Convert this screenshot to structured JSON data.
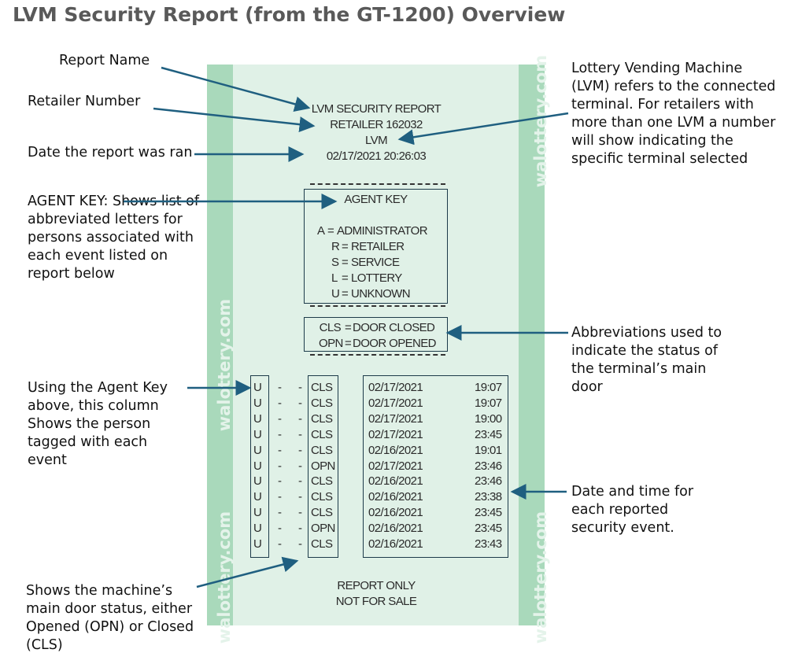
{
  "title": "LVM Security Report (from the GT-1200) Overview",
  "annotations": {
    "report_name": "Report Name",
    "retailer_number": "Retailer Number",
    "date_ran": "Date the report was ran",
    "agent_key": "AGENT KEY: Shows list of abbreviated letters for persons associated with each event listed on report below",
    "lvm": "Lottery Vending Machine (LVM) refers to the connected terminal. For retailers with more than one LVM a number will show indicating the specific terminal selected",
    "abbreviations": "Abbreviations used to indicate the status of the terminal’s main door",
    "agent_column": "Using the Agent Key above, this column Shows the person tagged with each event",
    "door_status": "Shows the machine’s main door status, either Opened (OPN) or Closed (CLS)",
    "date_time": "Date and time for each reported security event."
  },
  "ticket": {
    "watermark": "walottery.com",
    "header": [
      "LVM SECURITY REPORT",
      "RETAILER  162032",
      "LVM",
      "02/17/2021  20:26:03"
    ],
    "agent_key_title": "AGENT KEY",
    "agent_key": [
      [
        "A",
        "ADMINISTRATOR"
      ],
      [
        "R",
        "RETAILER"
      ],
      [
        "S",
        "SERVICE"
      ],
      [
        "L",
        "LOTTERY"
      ],
      [
        "U",
        "UNKNOWN"
      ]
    ],
    "door_key": [
      [
        "CLS",
        "DOOR CLOSED"
      ],
      [
        "OPN",
        "DOOR OPENED"
      ]
    ],
    "events": [
      [
        "U",
        "CLS",
        "02/17/2021",
        "19:07"
      ],
      [
        "U",
        "CLS",
        "02/17/2021",
        "19:07"
      ],
      [
        "U",
        "CLS",
        "02/17/2021",
        "19:00"
      ],
      [
        "U",
        "CLS",
        "02/17/2021",
        "23:45"
      ],
      [
        "U",
        "CLS",
        "02/16/2021",
        "19:01"
      ],
      [
        "U",
        "OPN",
        "02/17/2021",
        "23:46"
      ],
      [
        "U",
        "CLS",
        "02/16/2021",
        "23:46"
      ],
      [
        "U",
        "CLS",
        "02/16/2021",
        "23:38"
      ],
      [
        "U",
        "CLS",
        "02/16/2021",
        "23:45"
      ],
      [
        "U",
        "OPN",
        "02/16/2021",
        "23:45"
      ],
      [
        "U",
        "CLS",
        "02/16/2021",
        "23:43"
      ]
    ],
    "footer": [
      "REPORT ONLY",
      "NOT FOR SALE"
    ]
  },
  "colors": {
    "arrow": "#1f5f80",
    "paper": "#e0f1e7",
    "stripe": "#a9d9bb"
  }
}
